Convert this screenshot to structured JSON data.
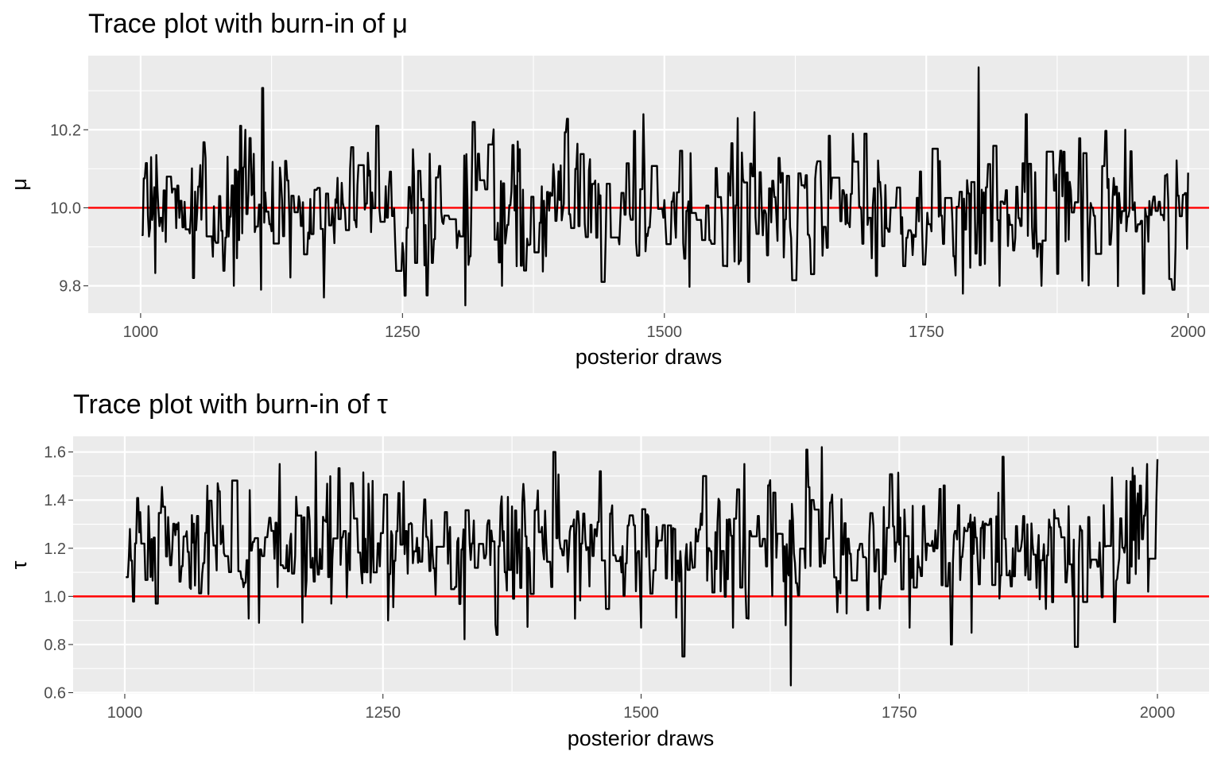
{
  "chart_data": [
    {
      "type": "line",
      "title": "Trace plot with burn-in of μ",
      "xlabel": "posterior draws",
      "ylabel": "μ",
      "xlim": [
        950,
        2020
      ],
      "ylim": [
        9.73,
        10.39
      ],
      "xticks": [
        1000,
        1250,
        1500,
        1750,
        2000
      ],
      "xtick_labels": [
        "1000",
        "1250",
        "1500",
        "1750",
        "2000"
      ],
      "yticks": [
        9.8,
        10.0,
        10.2
      ],
      "ytick_labels": [
        "9.8",
        "10.0",
        "10.2"
      ],
      "grid": true,
      "reference_line": {
        "value": 10.0,
        "color": "#ff0000"
      },
      "series_color": "#000000",
      "draw_range": [
        1001,
        2000
      ],
      "mean": 10.0,
      "sd": 0.085,
      "sampled_points": {
        "x": [
          1001,
          1010,
          1025,
          1040,
          1050,
          1075,
          1095,
          1100,
          1115,
          1140,
          1175,
          1200,
          1225,
          1250,
          1260,
          1290,
          1310,
          1345,
          1360,
          1400,
          1440,
          1480,
          1500,
          1525,
          1560,
          1570,
          1580,
          1600,
          1640,
          1680,
          1700,
          1750,
          1785,
          1800,
          1820,
          1845,
          1860,
          1900,
          1940,
          1985,
          2000
        ],
        "y": [
          9.93,
          10.13,
          10.08,
          9.95,
          9.82,
          10.03,
          10.21,
          10.2,
          9.79,
          10.07,
          9.77,
          10.1,
          10.21,
          9.91,
          10.15,
          9.98,
          9.75,
          9.8,
          10.17,
          10.02,
          9.81,
          10.24,
          10.02,
          10.14,
          9.85,
          10.23,
          9.81,
          10.05,
          9.83,
          10.19,
          10.05,
          9.91,
          9.78,
          10.36,
          9.8,
          10.24,
          9.8,
          10.14,
          10.2,
          9.79,
          10.09
        ]
      }
    },
    {
      "type": "line",
      "title": "Trace plot with burn-in of τ",
      "xlabel": "posterior draws",
      "ylabel": "τ",
      "xlim": [
        950,
        2050
      ],
      "ylim": [
        0.595,
        1.665
      ],
      "xticks": [
        1000,
        1250,
        1500,
        1750,
        2000
      ],
      "xtick_labels": [
        "1000",
        "1250",
        "1500",
        "1750",
        "2000"
      ],
      "yticks": [
        0.6,
        0.8,
        1.0,
        1.2,
        1.4,
        1.6
      ],
      "ytick_labels": [
        "0.6",
        "0.8",
        "1.0",
        "1.2",
        "1.4",
        "1.6"
      ],
      "grid": true,
      "reference_line": {
        "value": 1.0,
        "color": "#ff0000"
      },
      "series_color": "#000000",
      "draw_range": [
        1001,
        2000
      ],
      "mean": 1.2,
      "sd": 0.13,
      "sampled_points": {
        "x": [
          1001,
          1005,
          1015,
          1030,
          1050,
          1080,
          1090,
          1130,
          1150,
          1185,
          1200,
          1240,
          1255,
          1310,
          1360,
          1400,
          1415,
          1460,
          1500,
          1540,
          1560,
          1600,
          1640,
          1645,
          1660,
          1675,
          1700,
          1760,
          1800,
          1850,
          1860,
          1900,
          1920,
          1970,
          1990,
          2000
        ],
        "y": [
          1.08,
          1.28,
          1.35,
          0.97,
          1.3,
          1.46,
          1.47,
          0.89,
          1.55,
          1.6,
          0.97,
          1.48,
          0.9,
          1.35,
          0.84,
          1.44,
          1.6,
          1.52,
          0.87,
          0.75,
          1.5,
          1.55,
          0.88,
          0.63,
          1.61,
          1.62,
          1.24,
          0.87,
          0.8,
          1.58,
          1.2,
          1.36,
          0.79,
          1.48,
          1.55,
          1.57
        ]
      }
    }
  ]
}
